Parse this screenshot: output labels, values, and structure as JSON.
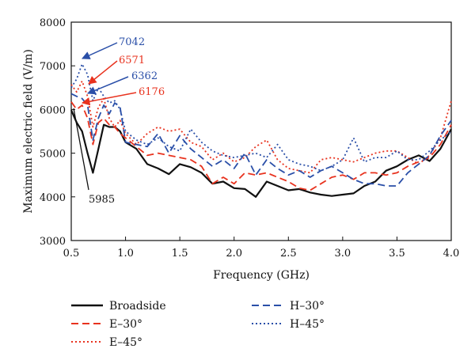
{
  "chart_data": {
    "type": "line",
    "xlabel": "Frequency (GHz)",
    "ylabel": "Maximum electric field (V/m)",
    "xlim": [
      0.5,
      4.0
    ],
    "ylim": [
      3000,
      8000
    ],
    "xticks": [
      0.5,
      1.0,
      1.5,
      2.0,
      2.5,
      3.0,
      3.5,
      4.0
    ],
    "xtick_labels": [
      "0.5",
      "1.0",
      "1.5",
      "2.0",
      "2.5",
      "3.0",
      "3.5",
      "4.0"
    ],
    "yticks": [
      3000,
      4000,
      5000,
      6000,
      7000,
      8000
    ],
    "ytick_labels": [
      "3000",
      "4000",
      "5000",
      "6000",
      "7000",
      "8000"
    ],
    "grid": false,
    "legend_position": "bottom",
    "series": [
      {
        "name": "Broadside",
        "color": "#111111",
        "dash": "solid",
        "x": [
          0.5,
          0.55,
          0.6,
          0.65,
          0.7,
          0.75,
          0.8,
          0.85,
          0.9,
          0.95,
          1.0,
          1.1,
          1.2,
          1.3,
          1.4,
          1.5,
          1.6,
          1.7,
          1.8,
          1.9,
          2.0,
          2.1,
          2.2,
          2.3,
          2.4,
          2.5,
          2.6,
          2.7,
          2.8,
          2.9,
          3.0,
          3.1,
          3.2,
          3.3,
          3.4,
          3.5,
          3.6,
          3.7,
          3.8,
          3.9,
          4.0
        ],
        "values": [
          5985,
          5700,
          5500,
          5000,
          4550,
          5100,
          5650,
          5600,
          5600,
          5500,
          5250,
          5100,
          4750,
          4650,
          4520,
          4750,
          4680,
          4550,
          4300,
          4350,
          4200,
          4180,
          4000,
          4350,
          4250,
          4150,
          4180,
          4100,
          4050,
          4020,
          4050,
          4080,
          4250,
          4350,
          4600,
          4700,
          4850,
          4950,
          4820,
          5100,
          5550
        ]
      },
      {
        "name": "E–30°",
        "color": "#e8321e",
        "dash": "long-dash",
        "x": [
          0.5,
          0.55,
          0.6,
          0.65,
          0.7,
          0.75,
          0.8,
          0.85,
          0.9,
          0.95,
          1.0,
          1.1,
          1.2,
          1.3,
          1.4,
          1.5,
          1.6,
          1.7,
          1.8,
          1.9,
          2.0,
          2.1,
          2.2,
          2.3,
          2.4,
          2.5,
          2.6,
          2.7,
          2.8,
          2.9,
          3.0,
          3.1,
          3.2,
          3.3,
          3.4,
          3.5,
          3.6,
          3.7,
          3.8,
          3.9,
          4.0
        ],
        "values": [
          6176,
          6000,
          6100,
          5800,
          5200,
          5700,
          5800,
          5650,
          5600,
          5450,
          5350,
          5150,
          4950,
          5000,
          4950,
          4900,
          4850,
          4700,
          4300,
          4450,
          4300,
          4550,
          4500,
          4550,
          4450,
          4350,
          4200,
          4150,
          4300,
          4450,
          4500,
          4400,
          4550,
          4550,
          4500,
          4550,
          4700,
          4800,
          4900,
          5200,
          5650
        ]
      },
      {
        "name": "E–45°",
        "color": "#e8321e",
        "dash": "dot",
        "x": [
          0.5,
          0.55,
          0.6,
          0.65,
          0.7,
          0.75,
          0.8,
          0.85,
          0.9,
          0.95,
          1.0,
          1.1,
          1.2,
          1.3,
          1.4,
          1.5,
          1.6,
          1.7,
          1.8,
          1.9,
          2.0,
          2.1,
          2.2,
          2.3,
          2.4,
          2.5,
          2.6,
          2.7,
          2.8,
          2.9,
          3.0,
          3.1,
          3.2,
          3.3,
          3.4,
          3.5,
          3.6,
          3.7,
          3.8,
          3.9,
          4.0
        ],
        "values": [
          6571,
          6400,
          6650,
          6300,
          5600,
          6050,
          6250,
          5800,
          5600,
          5750,
          5450,
          5200,
          5450,
          5600,
          5500,
          5550,
          5250,
          5150,
          4850,
          5000,
          4800,
          4900,
          5150,
          5300,
          4850,
          4650,
          4600,
          4550,
          4850,
          4900,
          4850,
          4800,
          4900,
          5000,
          5050,
          5050,
          4900,
          4750,
          4950,
          5350,
          6200
        ]
      },
      {
        "name": "H–30°",
        "color": "#2a4fa8",
        "dash": "long-dash",
        "x": [
          0.5,
          0.55,
          0.6,
          0.65,
          0.7,
          0.75,
          0.8,
          0.85,
          0.9,
          0.95,
          1.0,
          1.1,
          1.2,
          1.3,
          1.4,
          1.5,
          1.6,
          1.7,
          1.8,
          1.9,
          2.0,
          2.1,
          2.2,
          2.3,
          2.4,
          2.5,
          2.6,
          2.7,
          2.8,
          2.9,
          3.0,
          3.1,
          3.2,
          3.3,
          3.4,
          3.5,
          3.6,
          3.7,
          3.8,
          3.9,
          4.0
        ],
        "values": [
          6362,
          6300,
          6250,
          6100,
          5300,
          5800,
          6100,
          5900,
          6150,
          6050,
          5250,
          5200,
          5150,
          5450,
          5000,
          5400,
          5100,
          4900,
          4700,
          4850,
          4650,
          5000,
          4500,
          4850,
          4650,
          4500,
          4600,
          4450,
          4600,
          4700,
          4550,
          4400,
          4300,
          4300,
          4250,
          4250,
          4550,
          4750,
          4950,
          5400,
          5750
        ]
      },
      {
        "name": "H–45°",
        "color": "#2a4fa8",
        "dash": "dot",
        "x": [
          0.5,
          0.55,
          0.6,
          0.65,
          0.7,
          0.75,
          0.8,
          0.85,
          0.9,
          0.95,
          1.0,
          1.1,
          1.2,
          1.3,
          1.4,
          1.5,
          1.6,
          1.7,
          1.8,
          1.9,
          2.0,
          2.1,
          2.2,
          2.3,
          2.4,
          2.5,
          2.6,
          2.7,
          2.8,
          2.9,
          3.0,
          3.1,
          3.2,
          3.3,
          3.4,
          3.5,
          3.6,
          3.7,
          3.8,
          3.9,
          4.0
        ],
        "values": [
          6500,
          6700,
          7042,
          6800,
          6200,
          6500,
          6300,
          6150,
          6200,
          6000,
          5500,
          5300,
          5200,
          5350,
          5150,
          5050,
          5550,
          5250,
          5050,
          4950,
          4900,
          4950,
          5000,
          4900,
          5200,
          4850,
          4750,
          4700,
          4600,
          4700,
          4850,
          5350,
          4800,
          4900,
          4900,
          5050,
          4850,
          4850,
          5050,
          5300,
          5500
        ]
      }
    ],
    "annotations": [
      {
        "text": "7042",
        "color": "#2a4fa8",
        "x": 0.6,
        "y": 7042
      },
      {
        "text": "6571",
        "color": "#e8321e",
        "x": 0.5,
        "y": 6571
      },
      {
        "text": "6362",
        "color": "#2a4fa8",
        "x": 0.5,
        "y": 6362
      },
      {
        "text": "6176",
        "color": "#e8321e",
        "x": 0.5,
        "y": 6176
      },
      {
        "text": "5985",
        "color": "#111111",
        "x": 0.5,
        "y": 5985
      }
    ]
  }
}
